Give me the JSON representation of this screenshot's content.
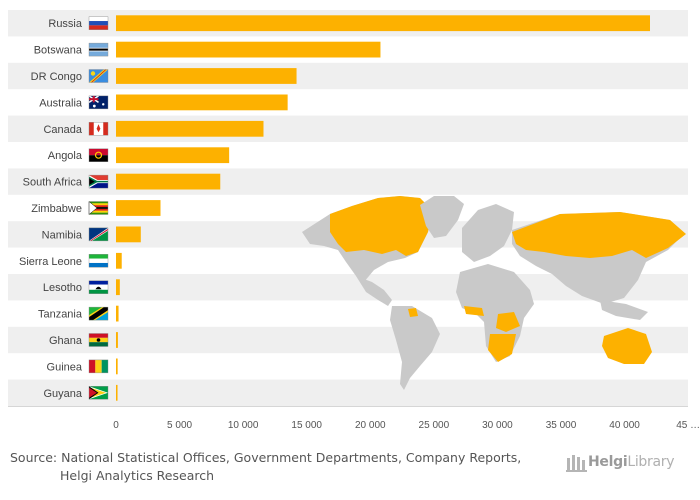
{
  "chart_data": {
    "type": "bar",
    "orientation": "horizontal",
    "categories": [
      "Russia",
      "Botswana",
      "DR Congo",
      "Australia",
      "Canada",
      "Angola",
      "South Africa",
      "Zimbabwe",
      "Namibia",
      "Sierra Leone",
      "Lesotho",
      "Tanzania",
      "Ghana",
      "Guinea",
      "Guyana"
    ],
    "values": [
      42000,
      20800,
      14200,
      13500,
      11600,
      8900,
      8200,
      3500,
      1950,
      450,
      300,
      200,
      150,
      130,
      120
    ],
    "ticks": [
      0,
      5000,
      10000,
      15000,
      20000,
      25000,
      30000,
      35000,
      40000
    ],
    "tick_labels": [
      "0",
      "5 000",
      "10 000",
      "15 000",
      "20 000",
      "25 000",
      "30 000",
      "35 000",
      "40 000"
    ],
    "truncated_tick_label": "45 …",
    "xlim": [
      0,
      45000
    ],
    "title": "",
    "xlabel": "",
    "ylabel": "",
    "bar_color": "#FDB100",
    "row_alt_color": "#EFEFEF",
    "map_land_color": "#C9C9C9",
    "map_highlight_color": "#FDB100"
  },
  "source": {
    "line1": "Source: National Statistical Offices, Government Departments, Company Reports,",
    "line2": "Helgi Analytics Research"
  },
  "brand": {
    "name_part1": "Helgi",
    "name_part2": "Library"
  }
}
